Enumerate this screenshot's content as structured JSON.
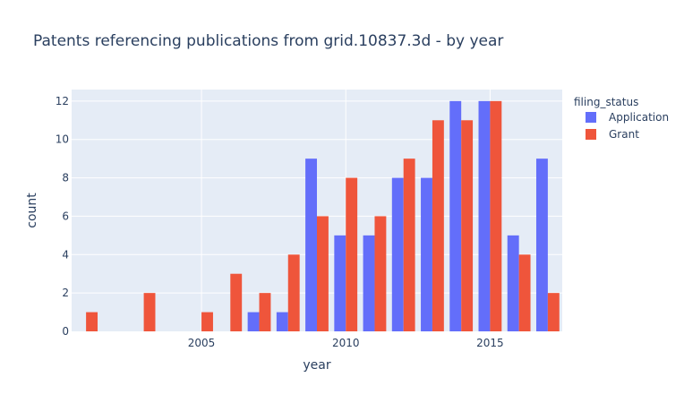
{
  "chart_data": {
    "type": "bar",
    "barmode": "group",
    "title": "Patents referencing publications from grid.10837.3d - by year",
    "xlabel": "year",
    "ylabel": "count",
    "x_ticks": [
      "2005",
      "2010",
      "2015"
    ],
    "y_ticks": [
      "0",
      "2",
      "4",
      "6",
      "8",
      "10",
      "12"
    ],
    "xlim": [
      2000.5,
      2017.5
    ],
    "ylim": [
      0,
      12.6
    ],
    "grid": true,
    "legend_title": "filing_status",
    "legend_position": "right",
    "series": [
      {
        "name": "Application",
        "color": "#636efa",
        "points": [
          {
            "x": 2007,
            "y": 1
          },
          {
            "x": 2008,
            "y": 1
          },
          {
            "x": 2009,
            "y": 9
          },
          {
            "x": 2010,
            "y": 5
          },
          {
            "x": 2011,
            "y": 5
          },
          {
            "x": 2012,
            "y": 8
          },
          {
            "x": 2013,
            "y": 8
          },
          {
            "x": 2014,
            "y": 12
          },
          {
            "x": 2015,
            "y": 12
          },
          {
            "x": 2016,
            "y": 5
          },
          {
            "x": 2017,
            "y": 9
          }
        ]
      },
      {
        "name": "Grant",
        "color": "#ef553b",
        "points": [
          {
            "x": 2001,
            "y": 1
          },
          {
            "x": 2003,
            "y": 2
          },
          {
            "x": 2005,
            "y": 1
          },
          {
            "x": 2006,
            "y": 3
          },
          {
            "x": 2007,
            "y": 2
          },
          {
            "x": 2008,
            "y": 4
          },
          {
            "x": 2009,
            "y": 6
          },
          {
            "x": 2010,
            "y": 8
          },
          {
            "x": 2011,
            "y": 6
          },
          {
            "x": 2012,
            "y": 9
          },
          {
            "x": 2013,
            "y": 11
          },
          {
            "x": 2014,
            "y": 11
          },
          {
            "x": 2015,
            "y": 12
          },
          {
            "x": 2016,
            "y": 4
          },
          {
            "x": 2017,
            "y": 2
          }
        ]
      }
    ]
  },
  "colors": {
    "plot_background": "#e5ecf6",
    "gridline": "#ffffff",
    "text": "#2a3f5f"
  }
}
